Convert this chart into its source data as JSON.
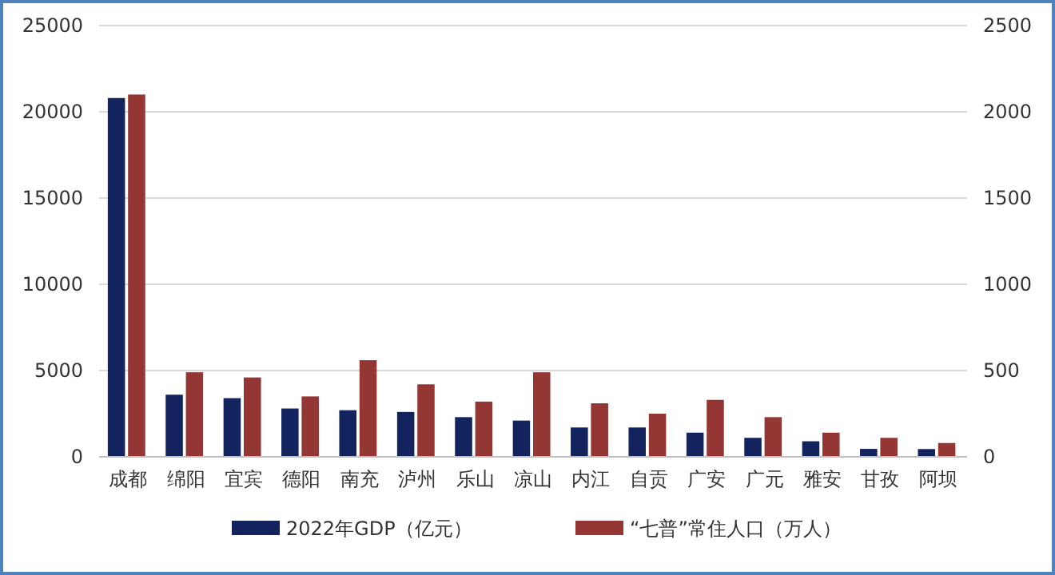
{
  "chart_data": {
    "type": "bar",
    "categories": [
      "成都",
      "绵阳",
      "宜宾",
      "德阳",
      "南充",
      "泸州",
      "乐山",
      "凉山",
      "内江",
      "自贡",
      "广安",
      "广元",
      "雅安",
      "甘孜",
      "阿坝"
    ],
    "series": [
      {
        "name": "2022年GDP（亿元）",
        "color": "#12235e",
        "values": [
          20800,
          3600,
          3400,
          2800,
          2700,
          2600,
          2300,
          2100,
          1700,
          1700,
          1400,
          1100,
          900,
          460,
          450
        ]
      },
      {
        "name": "“七普”常住人口（万人）",
        "color": "#943634",
        "axis": "y2",
        "values": [
          2100,
          490,
          460,
          350,
          560,
          420,
          320,
          490,
          310,
          250,
          330,
          230,
          140,
          110,
          80
        ]
      }
    ],
    "ylim": [
      0,
      25000
    ],
    "yticks": [
      0,
      5000,
      10000,
      15000,
      20000,
      25000
    ],
    "y2lim": [
      0,
      2500
    ],
    "y2ticks": [
      0,
      500,
      1000,
      1500,
      2000,
      2500
    ],
    "grid": "y",
    "legend": "bottom"
  }
}
